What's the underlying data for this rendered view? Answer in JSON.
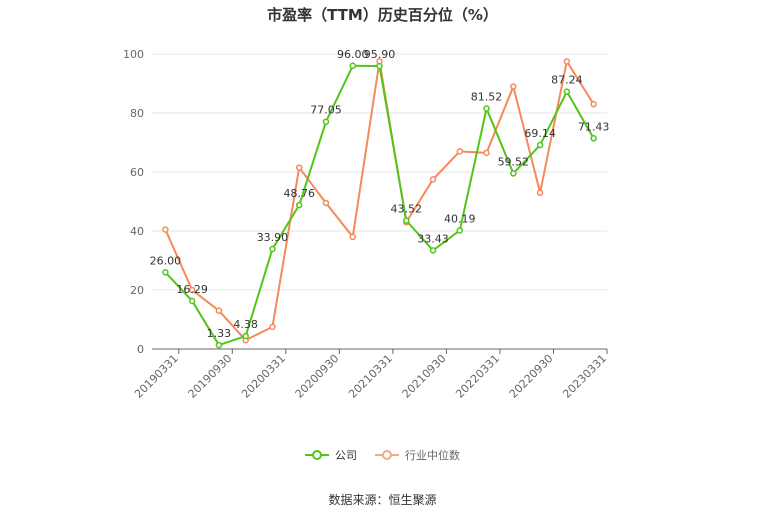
{
  "chart_data": {
    "type": "line",
    "title": "市盈率（TTM）历史百分位（%）",
    "x": [
      "20190331",
      "20190630",
      "20190930",
      "20191231",
      "20200331",
      "20200630",
      "20200930",
      "20201231",
      "20210331",
      "20210630",
      "20210930",
      "20211231",
      "20220331",
      "20220630",
      "20220930",
      "20221231",
      "20230331"
    ],
    "x_tick_labels": [
      "20190331",
      "20190930",
      "20200331",
      "20200930",
      "20210331",
      "20210930",
      "20220331",
      "20220930",
      "20230331"
    ],
    "y_ticks": [
      0,
      20,
      40,
      60,
      80,
      100
    ],
    "ylim": [
      0,
      100
    ],
    "grid": "horizontal",
    "legend_position": "bottom",
    "series": [
      {
        "name": "公司",
        "color": "#52c41a",
        "values": [
          26.0,
          16.29,
          1.33,
          4.38,
          33.9,
          48.76,
          77.05,
          96.0,
          95.9,
          43.52,
          33.43,
          40.19,
          81.52,
          59.52,
          69.14,
          87.24,
          71.43
        ],
        "labels": [
          "26.00",
          "16.29",
          "1.33",
          "4.38",
          "33.90",
          "48.76",
          "77.05",
          "96.00",
          "95.90",
          "43.52",
          "33.43",
          "40.19",
          "81.52",
          "59.52",
          "69.14",
          "87.24",
          "71.43"
        ]
      },
      {
        "name": "行业中位数",
        "color": "#f5895a",
        "values": [
          40.5,
          20.0,
          13.0,
          3.0,
          7.5,
          61.5,
          49.5,
          38.0,
          97.5,
          43.0,
          57.5,
          67.0,
          66.5,
          89.0,
          53.0,
          97.5,
          83.0
        ]
      }
    ]
  },
  "legend": {
    "company": "公司",
    "industry": "行业中位数"
  },
  "source": "数据来源：恒生聚源"
}
